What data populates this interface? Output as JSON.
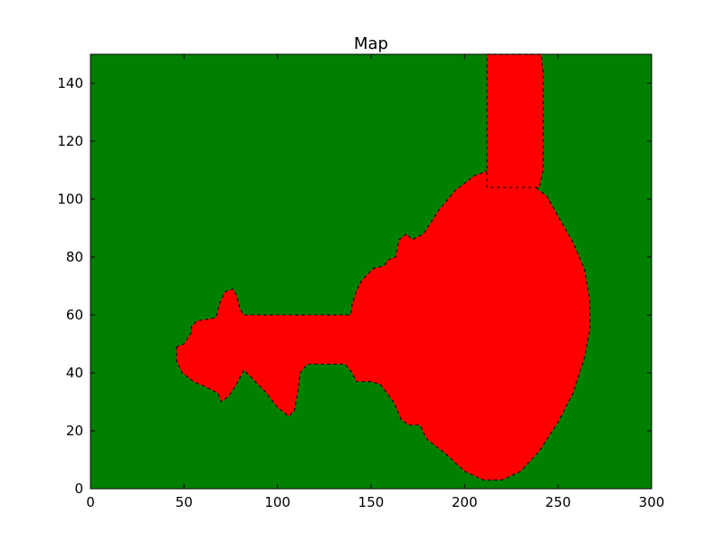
{
  "chart_data": {
    "type": "heatmap",
    "title": "Map",
    "xlabel": "",
    "ylabel": "",
    "xlim": [
      0,
      300
    ],
    "ylim": [
      0,
      150
    ],
    "xticks": [
      0,
      50,
      100,
      150,
      200,
      250,
      300
    ],
    "yticks": [
      0,
      20,
      40,
      60,
      80,
      100,
      120,
      140
    ],
    "grid": false,
    "colors": {
      "background": "#008000",
      "region": "#ff0000",
      "edge": "#000000"
    },
    "regions": [
      {
        "kind": "polygon",
        "points": [
          [
            46,
            49
          ],
          [
            46,
            44
          ],
          [
            49,
            40
          ],
          [
            55,
            37
          ],
          [
            62,
            35
          ],
          [
            68,
            33
          ],
          [
            70,
            30
          ],
          [
            74,
            32
          ],
          [
            78,
            36
          ],
          [
            82,
            41
          ],
          [
            88,
            37
          ],
          [
            94,
            33
          ],
          [
            100,
            28
          ],
          [
            106,
            25
          ],
          [
            109,
            27
          ],
          [
            111,
            34
          ],
          [
            112,
            40
          ],
          [
            116,
            43
          ],
          [
            130,
            43
          ],
          [
            136,
            43
          ],
          [
            140,
            40
          ],
          [
            142,
            37
          ],
          [
            150,
            37
          ],
          [
            155,
            36
          ],
          [
            162,
            30
          ],
          [
            166,
            24
          ],
          [
            170,
            22
          ],
          [
            176,
            22
          ],
          [
            180,
            17
          ],
          [
            190,
            12
          ],
          [
            200,
            6
          ],
          [
            210,
            3
          ],
          [
            220,
            3
          ],
          [
            230,
            6
          ],
          [
            240,
            13
          ],
          [
            250,
            23
          ],
          [
            258,
            33
          ],
          [
            264,
            45
          ],
          [
            267,
            55
          ],
          [
            267,
            65
          ],
          [
            264,
            76
          ],
          [
            258,
            85
          ],
          [
            251,
            93
          ],
          [
            244,
            101
          ],
          [
            238,
            104
          ],
          [
            231,
            108
          ],
          [
            223,
            110
          ],
          [
            213,
            110
          ],
          [
            205,
            108
          ],
          [
            195,
            103
          ],
          [
            186,
            96
          ],
          [
            178,
            88
          ],
          [
            172,
            86
          ],
          [
            169,
            88
          ],
          [
            165,
            86
          ],
          [
            163,
            80
          ],
          [
            159,
            79
          ],
          [
            157,
            77
          ],
          [
            151,
            76
          ],
          [
            145,
            72
          ],
          [
            142,
            68
          ],
          [
            140,
            64
          ],
          [
            139,
            60
          ],
          [
            115,
            60
          ],
          [
            111,
            60
          ],
          [
            105,
            60
          ],
          [
            82,
            60
          ],
          [
            80,
            62
          ],
          [
            78,
            67
          ],
          [
            76,
            69
          ],
          [
            72,
            68
          ],
          [
            69,
            64
          ],
          [
            67,
            59
          ],
          [
            57,
            58
          ],
          [
            54,
            56
          ],
          [
            54,
            54
          ],
          [
            50,
            50
          ]
        ]
      },
      {
        "kind": "polygon",
        "points": [
          [
            212,
            104
          ],
          [
            212,
            150
          ],
          [
            241,
            150
          ],
          [
            242,
            144
          ],
          [
            242,
            110
          ],
          [
            240,
            104
          ]
        ]
      }
    ]
  }
}
